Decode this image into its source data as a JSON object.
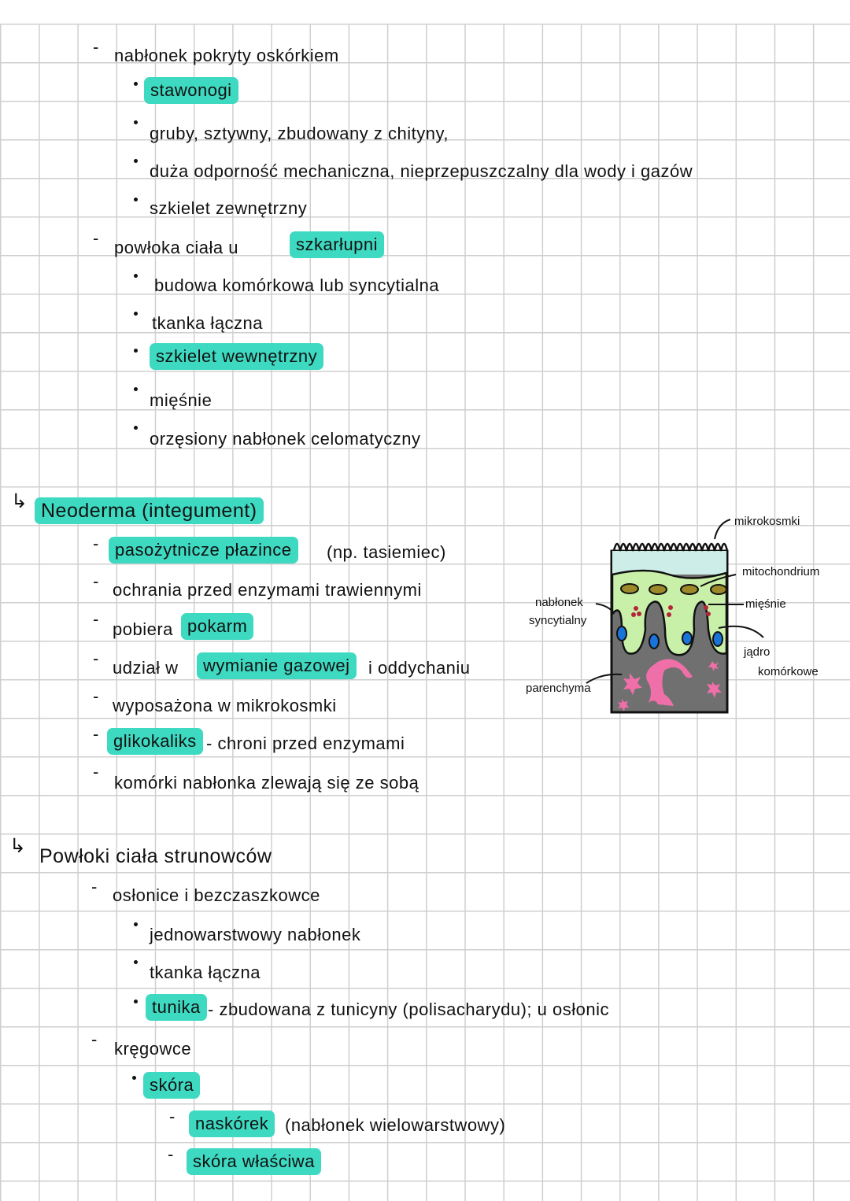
{
  "highlight_color": "#3dd9c1",
  "bullet_dash": "-",
  "arrow": "↳",
  "section1": {
    "l1": "nabłonek pokryty oskórkiem",
    "l2_hl": "stawonogi",
    "l3": "gruby, sztywny, zbudowany z chityny,",
    "l4": "duża odporność mechaniczna, nieprzepuszczalny dla wody i gazów",
    "l5": "szkielet zewnętrzny",
    "l6": "powłoka ciała u",
    "l6_hl": "szkarłupni",
    "l7": "budowa komórkowa lub syncytialna",
    "l8": "tkanka łączna",
    "l9_hl": "szkielet wewnętrzny",
    "l10": "mięśnie",
    "l11": "orzęsiony nabłonek celomatyczny"
  },
  "section2": {
    "title_hl": "Neoderma (integument)",
    "l1_hl": "pasożytnicze płazince",
    "l1": "(np. tasiemiec)",
    "l2": "ochrania przed enzymami trawiennymi",
    "l3": "pobiera",
    "l3_hl": "pokarm",
    "l4a": "udział w",
    "l4_hl": "wymianie gazowej",
    "l4b": "i oddychaniu",
    "l5": "wyposażona w mikrokosmki",
    "l6_hl": "glikokaliks",
    "l6": "- chroni przed enzymami",
    "l7": "komórki nabłonka zlewają się ze sobą"
  },
  "diagram": {
    "labels": {
      "microvilli": "mikrokosmki",
      "mitochondrion": "mitochondrium",
      "muscles": "mięśnie",
      "nucleus_1": "jądro",
      "nucleus_2": "komórkowe",
      "syncytial_1": "nabłonek",
      "syncytial_2": "syncytialny",
      "parenchyma": "parenchyma"
    },
    "colors": {
      "microvilli": "#cdeee8",
      "cytoplasm": "#c9f0a8",
      "tissue": "#707070",
      "nucleus": "#1a73d9",
      "mito": "#9c8a2a",
      "parenchyma": "#ef6fa8"
    }
  },
  "section3": {
    "title": "Powłoki ciała strunowców",
    "l1": "osłonice i bezczaszkowce",
    "l2": "jednowarstwowy nabłonek",
    "l3": "tkanka łączna",
    "l4_hl": "tunika",
    "l4": "- zbudowana z tunicyny (polisacharydu); u osłonic",
    "l5": "kręgowce",
    "l6_hl": "skóra",
    "l7_hl": "naskórek",
    "l7": "(nabłonek wielowarstwowy)",
    "l8_hl": "skóra właściwa"
  }
}
